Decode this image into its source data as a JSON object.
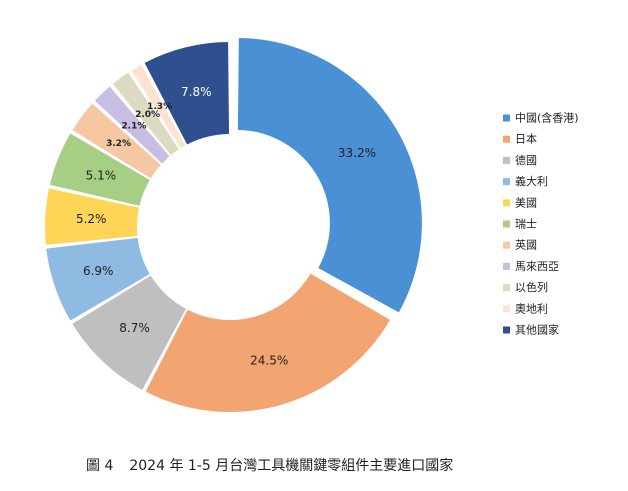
{
  "chart_data": {
    "type": "pie",
    "variant": "donut",
    "categories": [
      "中國(含香港)",
      "日本",
      "德國",
      "義大利",
      "美國",
      "瑞士",
      "英國",
      "馬來西亞",
      "以色列",
      "奧地利",
      "其他國家"
    ],
    "values": [
      33.2,
      24.5,
      8.7,
      6.9,
      5.2,
      5.1,
      3.2,
      2.1,
      2.0,
      1.3,
      7.8
    ],
    "data_labels": [
      "33.2%",
      "24.5%",
      "8.7%",
      "6.9%",
      "5.2%",
      "5.1%",
      "3.2%",
      "2.1%",
      "2.0%",
      "1.3%",
      "7.8%"
    ],
    "colors": [
      "#4a90d4",
      "#f2a571",
      "#bfbfbf",
      "#8fbbe3",
      "#ffd557",
      "#a6cf85",
      "#f5c7a3",
      "#c8bde2",
      "#dcdac0",
      "#fbe3d2",
      "#2f4f8f"
    ],
    "label_colors": [
      "#1f1f1f",
      "#1f1f1f",
      "#1f1f1f",
      "#1f1f1f",
      "#1f1f1f",
      "#1f1f1f",
      "#1f1f1f",
      "#1f1f1f",
      "#1f1f1f",
      "#1f1f1f",
      "#ffffff"
    ],
    "exploded_index": 0,
    "start_angle_deg": 270,
    "legend_position": "right"
  },
  "caption": {
    "figure": "圖 4",
    "title": "2024 年 1-5 月台灣工具機關鍵零組件主要進口國家"
  }
}
